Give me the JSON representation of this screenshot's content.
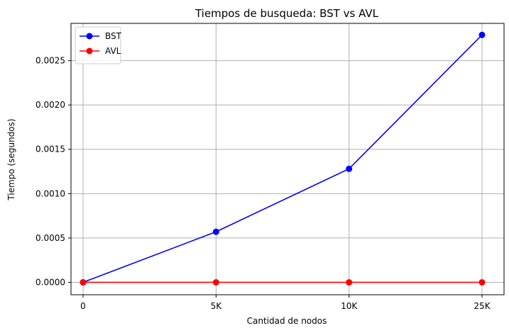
{
  "chart_data": {
    "type": "line",
    "title": "Tiempos de busqueda: BST vs AVL",
    "xlabel": "Cantidad de nodos",
    "ylabel": "Tiempo (segundos)",
    "categories": [
      "0",
      "5K",
      "10K",
      "25K"
    ],
    "yticks": [
      "0.0000",
      "0.0005",
      "0.0010",
      "0.0015",
      "0.0020",
      "0.0025"
    ],
    "ylim": [
      -0.00014,
      0.00292
    ],
    "grid": true,
    "legend_position": "top-left",
    "series": [
      {
        "name": "BST",
        "color": "#0000ff",
        "values": [
          0.0,
          0.00057,
          0.00128,
          0.00279
        ]
      },
      {
        "name": "AVL",
        "color": "#ff0000",
        "values": [
          0.0,
          0.0,
          0.0,
          0.0
        ]
      }
    ]
  }
}
